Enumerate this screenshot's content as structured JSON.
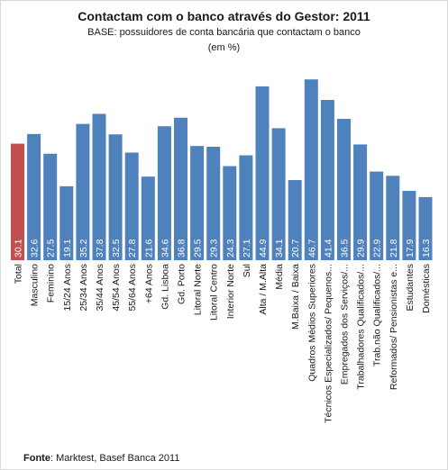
{
  "chart_data": {
    "type": "bar",
    "title": "Contactam com o banco através do  Gestor: 2011",
    "subtitle": "BASE: possuidores de conta bancária que contactam o banco",
    "unit": "(em %)",
    "source_label": "Fonte",
    "source_text": ": Marktest, Basef Banca 2011",
    "categories": [
      "Total",
      "Masculino",
      "Feminino",
      "15/24 Anos",
      "25/34 Anos",
      "35/44 Anos",
      "45/54 Anos",
      "55/64 Anos",
      "+64 Anos",
      "Gd. Lisboa",
      "Gd. Porto",
      "Litoral Norte",
      "Litoral Centro",
      "Interior Norte",
      "Sul",
      "Alta / M.Alta",
      "Média",
      "M.Baixa / Baixa",
      "Quadros Médios Superiores",
      "Técnicos Especializados/ Pequenos...",
      "Empregados dos Serviços/...",
      "Trabalhadores Qualificados/...",
      "Trab.não Qualificados/...",
      "Reformados/ Pensionistas e...",
      "Estudantes",
      "Domésticas"
    ],
    "values": [
      30.1,
      32.6,
      27.5,
      19.1,
      35.2,
      37.8,
      32.5,
      27.8,
      21.6,
      34.6,
      36.8,
      29.5,
      29.3,
      24.3,
      27.1,
      44.9,
      34.1,
      20.7,
      46.7,
      41.4,
      36.5,
      29.9,
      22.9,
      21.8,
      17.9,
      16.3
    ],
    "value_labels": [
      "30.1",
      "32.6",
      "27.5",
      "19.1",
      "35.2",
      "37.8",
      "32.5",
      "27.8",
      "21.6",
      "34.6",
      "36.8",
      "29.5",
      "29.3",
      "24.3",
      "27.1",
      "44.9",
      "34.1",
      "20.7",
      "46.7",
      "41.4",
      "36.5",
      "29.9",
      "22.9",
      "21.8",
      "17.9",
      "16.3"
    ],
    "colors": {
      "highlight": "#c0504d",
      "bar": "#4f81bd"
    },
    "highlight_index": 0,
    "ylim": [
      0,
      50
    ]
  }
}
